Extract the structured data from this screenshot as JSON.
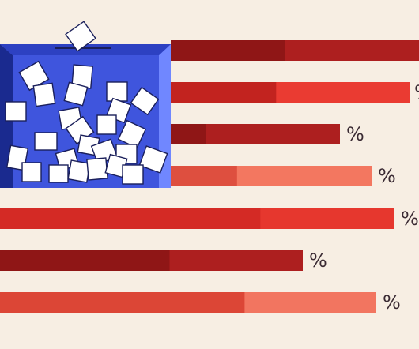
{
  "illustration": {
    "subject": "flag-ballot-box",
    "colors": {
      "background": "#f7eee3",
      "box_front": "#3f55dd",
      "box_side_left": "#1a2a8f",
      "box_side_right": "#7087ff",
      "box_rim": "#2d41c2",
      "ballot": "#ffffff",
      "ballot_outline": "#1a1f5a",
      "percent_text": "#3a2a33"
    }
  },
  "bars": [
    {
      "segments": [
        {
          "share": 0.46,
          "color": "#8f1616"
        },
        {
          "share": 0.54,
          "color": "#ad1f1f"
        }
      ],
      "percent_label": "%"
    },
    {
      "segments": [
        {
          "share": 0.44,
          "color": "#c2231f"
        },
        {
          "share": 0.56,
          "color": "#ea3b32"
        }
      ],
      "percent_label": "%"
    },
    {
      "segments": [
        {
          "share": 0.21,
          "color": "#8f1616"
        },
        {
          "share": 0.79,
          "color": "#ad1f1f"
        }
      ],
      "percent_label": "%"
    },
    {
      "segments": [
        {
          "share": 0.33,
          "color": "#de4f3f"
        },
        {
          "share": 0.67,
          "color": "#f37760"
        }
      ],
      "percent_label": "%"
    },
    {
      "segments": [
        {
          "share": 0.66,
          "color": "#d42a25"
        },
        {
          "share": 0.34,
          "color": "#e6372e"
        }
      ],
      "percent_label": "%"
    },
    {
      "segments": [
        {
          "share": 0.56,
          "color": "#8f1616"
        },
        {
          "share": 0.44,
          "color": "#ad1f1f"
        }
      ],
      "percent_label": "%"
    },
    {
      "segments": [
        {
          "share": 0.65,
          "color": "#dc4636"
        },
        {
          "share": 0.35,
          "color": "#f27560"
        }
      ],
      "percent_label": "%"
    }
  ]
}
